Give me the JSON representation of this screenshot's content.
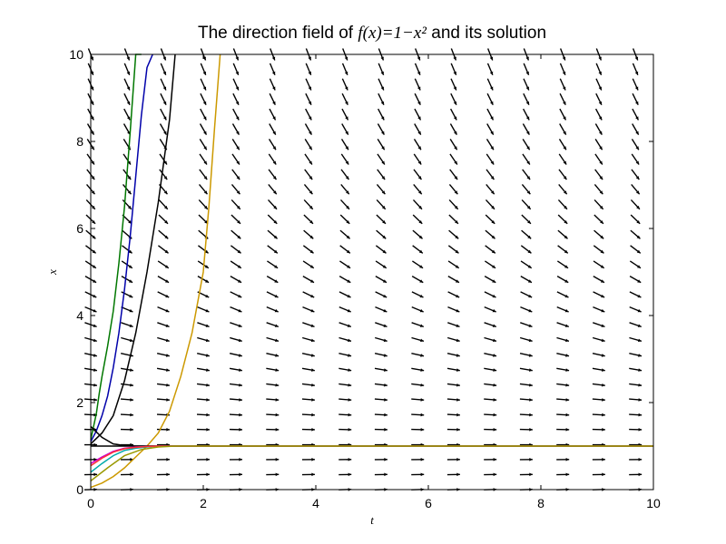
{
  "chart_data": {
    "type": "line",
    "title_prefix": "The direction field of ",
    "title_math": "f(x)=1−x²",
    "title_suffix": " and its solution",
    "xlabel": "t",
    "ylabel": "x",
    "xlim": [
      0,
      10
    ],
    "ylim": [
      0,
      10
    ],
    "xticks": [
      "0",
      "2",
      "4",
      "6",
      "8",
      "10"
    ],
    "yticks": [
      "0",
      "2",
      "4",
      "6",
      "8",
      "10"
    ],
    "grid": false,
    "direction_field": {
      "t_columns": [
        0,
        0.645,
        1.29,
        2.0,
        2.58,
        3.23,
        3.87,
        4.52,
        5.16,
        5.81,
        6.45,
        7.1,
        7.74,
        8.39,
        9.03,
        9.68
      ],
      "x_rows": [
        0,
        0.345,
        0.69,
        1.03,
        1.38,
        1.72,
        2.07,
        2.41,
        2.76,
        3.1,
        3.45,
        3.79,
        4.14,
        4.48,
        4.83,
        5.17,
        5.52,
        5.86,
        6.21,
        6.55,
        6.9,
        7.24,
        7.59,
        7.93,
        8.28,
        8.62,
        8.97,
        9.31,
        9.66,
        10.0
      ]
    },
    "series": [
      {
        "color": "#007700",
        "x0": 1.15,
        "values_t": [
          0,
          0.05,
          0.1,
          0.15,
          0.2,
          0.3,
          0.4,
          0.5,
          0.6,
          0.7,
          0.8,
          0.9
        ],
        "values_x": [
          1.15,
          1.45,
          1.75,
          2.2,
          2.6,
          3.3,
          4.1,
          5.2,
          6.5,
          8.2,
          10.0,
          10.0
        ]
      },
      {
        "color": "#0000aa",
        "x0": 1.1,
        "values_t": [
          0,
          0.1,
          0.2,
          0.3,
          0.4,
          0.5,
          0.6,
          0.7,
          0.8,
          0.9,
          1.0,
          1.1
        ],
        "values_x": [
          1.1,
          1.35,
          1.7,
          2.15,
          2.8,
          3.6,
          4.6,
          5.8,
          7.2,
          8.6,
          9.7,
          10.0
        ]
      },
      {
        "color": "#000000",
        "x0": 1.05,
        "values_t": [
          0,
          0.2,
          0.4,
          0.6,
          0.8,
          1.0,
          1.2,
          1.4,
          1.5
        ],
        "values_x": [
          1.05,
          1.3,
          1.7,
          2.5,
          3.6,
          5.0,
          6.6,
          8.5,
          10.0
        ]
      },
      {
        "color": "#cc9900",
        "x0": 0.05,
        "values_t": [
          0,
          0.2,
          0.4,
          0.6,
          0.8,
          1.0,
          1.2,
          1.4,
          1.6,
          1.8,
          2.0,
          2.1,
          2.2,
          2.3
        ],
        "values_x": [
          0.05,
          0.15,
          0.3,
          0.5,
          0.75,
          1.0,
          1.3,
          1.8,
          2.6,
          3.6,
          5.0,
          6.5,
          8.3,
          10.0
        ]
      },
      {
        "color": "#000000",
        "x0": 1.0,
        "values_t": [
          0,
          10
        ],
        "values_x": [
          1.0,
          1.0
        ]
      },
      {
        "color": "#000000",
        "x0": 1.45,
        "values_t": [
          0,
          0.2,
          0.4,
          0.6,
          0.8,
          1.0,
          1.5,
          10
        ],
        "values_x": [
          1.45,
          1.2,
          1.05,
          1.01,
          1.0,
          1.0,
          1.0,
          1.0
        ]
      },
      {
        "color": "#cc00cc",
        "x0": 0.6,
        "values_t": [
          0,
          0.2,
          0.4,
          0.6,
          0.8,
          1.0,
          1.2,
          1.5,
          10
        ],
        "values_x": [
          0.6,
          0.75,
          0.88,
          0.95,
          0.98,
          0.99,
          1.0,
          1.0,
          1.0
        ]
      },
      {
        "color": "#00aaaa",
        "x0": 0.4,
        "values_t": [
          0,
          0.2,
          0.4,
          0.6,
          0.8,
          1.0,
          1.2,
          1.5,
          10
        ],
        "values_x": [
          0.4,
          0.6,
          0.78,
          0.9,
          0.95,
          0.98,
          1.0,
          1.0,
          1.0
        ]
      },
      {
        "color": "#ff3333",
        "x0": 0.55,
        "values_t": [
          0,
          0.2,
          0.4,
          0.6,
          0.8,
          1.0,
          1.2,
          1.5,
          10
        ],
        "values_x": [
          0.55,
          0.72,
          0.86,
          0.94,
          0.97,
          0.99,
          1.0,
          1.0,
          1.0
        ]
      },
      {
        "color": "#999900",
        "x0": 0.2,
        "values_t": [
          0,
          0.3,
          0.6,
          0.9,
          1.2,
          1.5,
          10
        ],
        "values_x": [
          0.2,
          0.5,
          0.78,
          0.92,
          0.98,
          1.0,
          1.0
        ]
      }
    ]
  }
}
